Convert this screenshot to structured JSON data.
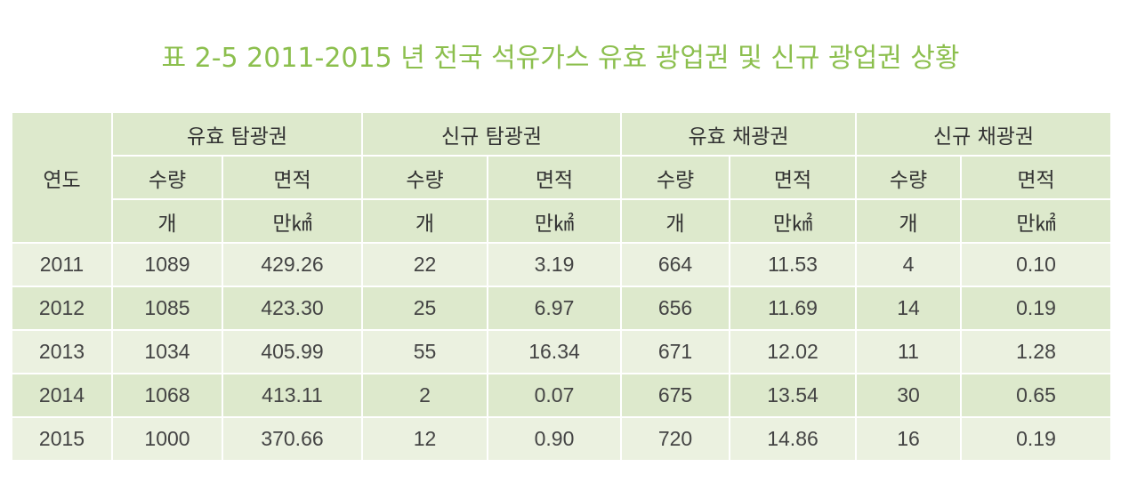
{
  "title": "표 2-5 2011-2015 년 전국 석유가스 유효 광업권 및 신규 광업권 상황",
  "chart_data": {
    "type": "table",
    "title": "표 2-5 2011-2015 년 전국 석유가스 유효 광업권 및 신규 광업권 상황",
    "year_header": "연도",
    "groups": [
      "유효 탐광권",
      "신규 탐광권",
      "유효 채광권",
      "신규 채광권"
    ],
    "sub_headers": [
      "수량",
      "면적"
    ],
    "units": [
      "개",
      "만㎢"
    ],
    "rows": [
      {
        "year": "2011",
        "values": [
          "1089",
          "429.26",
          "22",
          "3.19",
          "664",
          "11.53",
          "4",
          "0.10"
        ]
      },
      {
        "year": "2012",
        "values": [
          "1085",
          "423.30",
          "25",
          "6.97",
          "656",
          "11.69",
          "14",
          "0.19"
        ]
      },
      {
        "year": "2013",
        "values": [
          "1034",
          "405.99",
          "55",
          "16.34",
          "671",
          "12.02",
          "11",
          "1.28"
        ]
      },
      {
        "year": "2014",
        "values": [
          "1068",
          "413.11",
          "2",
          "0.07",
          "675",
          "13.54",
          "30",
          "0.65"
        ]
      },
      {
        "year": "2015",
        "values": [
          "1000",
          "370.66",
          "12",
          "0.90",
          "720",
          "14.86",
          "16",
          "0.19"
        ]
      }
    ]
  },
  "colors": {
    "title": "#8cbf4e",
    "header_bg": "#dde9cc",
    "row_light": "#ebf1e0",
    "row_dark": "#dde9cc"
  }
}
